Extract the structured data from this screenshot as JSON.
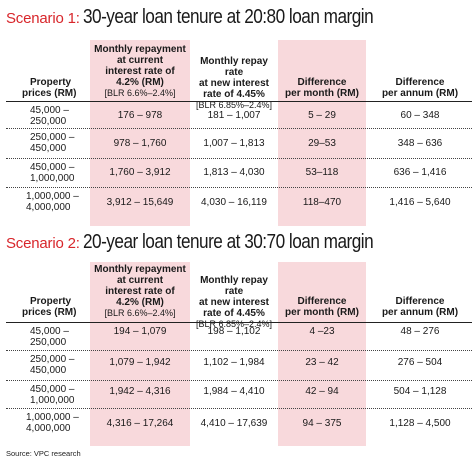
{
  "source": "Source: VPC research",
  "scenarios": [
    {
      "label": "Scenario 1:",
      "title": "30-year loan tenure at 20:80 loan margin",
      "headers": {
        "property": [
          "Property",
          "prices (RM)"
        ],
        "current": [
          "Monthly repayment",
          "at current",
          "interest rate of",
          "4.2% (RM)"
        ],
        "current_sub": "[BLR 6.6%–2.4%]",
        "new": [
          "Monthly repay rate",
          "at new interest",
          "rate of 4.45%"
        ],
        "new_sub": "[BLR 6.85%–2.4%]",
        "diff_month": [
          "Difference",
          "per month (RM)"
        ],
        "diff_annum": [
          "Difference",
          "per annum (RM)"
        ]
      },
      "rows": [
        {
          "price": [
            "45,000 –",
            "250,000"
          ],
          "current": "176 – 978",
          "new": "181 – 1,007",
          "diff_month": "5 – 29",
          "diff_annum": "60 – 348"
        },
        {
          "price": [
            "250,000 –",
            "450,000"
          ],
          "current": "978 – 1,760",
          "new": "1,007 – 1,813",
          "diff_month": "29–53",
          "diff_annum": "348 – 636"
        },
        {
          "price": [
            "450,000 –",
            "1,000,000"
          ],
          "current": "1,760 – 3,912",
          "new": "1,813 – 4,030",
          "diff_month": "53–118",
          "diff_annum": "636 – 1,416"
        },
        {
          "price": [
            "1,000,000 –",
            "4,000,000"
          ],
          "current": "3,912 – 15,649",
          "new": "4,030 – 16,119",
          "diff_month": "118–470",
          "diff_annum": "1,416 – 5,640"
        }
      ]
    },
    {
      "label": "Scenario 2:",
      "title": "20-year loan tenure at 30:70 loan margin",
      "headers": {
        "property": [
          "Property",
          "prices (RM)"
        ],
        "current": [
          "Monthly repayment",
          "at current",
          "interest rate of",
          "4.2% (RM)"
        ],
        "current_sub": "[BLR 6.6%–2.4%]",
        "new": [
          "Monthly repay rate",
          "at new interest",
          "rate of 4.45%"
        ],
        "new_sub": "[BLR 6.85%–2.4%]",
        "diff_month": [
          "Difference",
          "per month (RM)"
        ],
        "diff_annum": [
          "Difference",
          "per annum (RM)"
        ]
      },
      "rows": [
        {
          "price": [
            "45,000 –",
            "250,000"
          ],
          "current": "194 – 1,079",
          "new": "198 – 1,102",
          "diff_month": "4 –23",
          "diff_annum": "48 – 276"
        },
        {
          "price": [
            "250,000 –",
            "450,000"
          ],
          "current": "1,079 – 1,942",
          "new": "1,102 – 1,984",
          "diff_month": "23 – 42",
          "diff_annum": "276 – 504"
        },
        {
          "price": [
            "450,000 –",
            "1,000,000"
          ],
          "current": "1,942 – 4,316",
          "new": "1,984 – 4,410",
          "diff_month": "42 – 94",
          "diff_annum": "504 – 1,128"
        },
        {
          "price": [
            "1,000,000 –",
            "4,000,000"
          ],
          "current": "4,316 – 17,264",
          "new": "4,410 – 17,639",
          "diff_month": "94 – 375",
          "diff_annum": "1,128 – 4,500"
        }
      ]
    }
  ]
}
